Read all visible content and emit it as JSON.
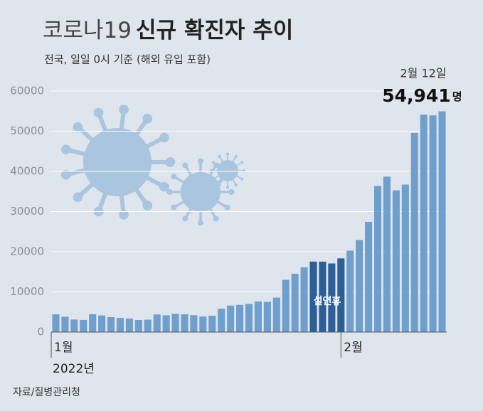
{
  "chart_data": {
    "type": "bar",
    "title": [
      "코로나19",
      "신규 확진자 추이"
    ],
    "subtitle": "전국, 일일 0시 기준 (해외 유입 포함)",
    "year_label": "2022년",
    "source": "자료/질병관리청",
    "highlight_label": "설연휴",
    "annotation": {
      "date": "2월 12일",
      "value": "54,941",
      "unit": "명"
    },
    "categories": [
      "1월",
      null,
      null,
      null,
      null,
      null,
      null,
      null,
      null,
      null,
      null,
      null,
      null,
      null,
      null,
      null,
      null,
      null,
      null,
      null,
      null,
      null,
      null,
      null,
      null,
      null,
      null,
      null,
      null,
      null,
      null,
      "2월",
      null,
      null,
      null,
      null,
      null,
      null,
      null,
      null,
      null,
      null,
      null
    ],
    "values": [
      4415,
      3833,
      3126,
      3022,
      4443,
      4126,
      3717,
      3510,
      3376,
      3005,
      3093,
      4385,
      4167,
      4542,
      4419,
      4194,
      3857,
      4071,
      5805,
      6603,
      6767,
      7009,
      7630,
      7513,
      8571,
      13012,
      14518,
      16096,
      17542,
      17528,
      17079,
      18342,
      20270,
      22907,
      27443,
      36362,
      38691,
      35286,
      36719,
      49567,
      54121,
      53926,
      54941
    ],
    "colors": [
      "#6f9fcc",
      "#6f9fcc",
      "#6f9fcc",
      "#6f9fcc",
      "#6f9fcc",
      "#6f9fcc",
      "#6f9fcc",
      "#6f9fcc",
      "#6f9fcc",
      "#6f9fcc",
      "#6f9fcc",
      "#6f9fcc",
      "#6f9fcc",
      "#6f9fcc",
      "#6f9fcc",
      "#6f9fcc",
      "#6f9fcc",
      "#6f9fcc",
      "#6f9fcc",
      "#6f9fcc",
      "#6f9fcc",
      "#6f9fcc",
      "#6f9fcc",
      "#6f9fcc",
      "#6f9fcc",
      "#6f9fcc",
      "#6f9fcc",
      "#6f9fcc",
      "#2c5f96",
      "#2c5f96",
      "#2c5f96",
      "#2c5f96",
      "#6f9fcc",
      "#6f9fcc",
      "#6f9fcc",
      "#6f9fcc",
      "#6f9fcc",
      "#6f9fcc",
      "#6f9fcc",
      "#6f9fcc",
      "#6f9fcc",
      "#6f9fcc",
      "#6f9fcc"
    ],
    "ylim": [
      0,
      60000
    ],
    "yticks": [
      0,
      10000,
      20000,
      30000,
      40000,
      50000,
      60000
    ],
    "grid": true
  }
}
